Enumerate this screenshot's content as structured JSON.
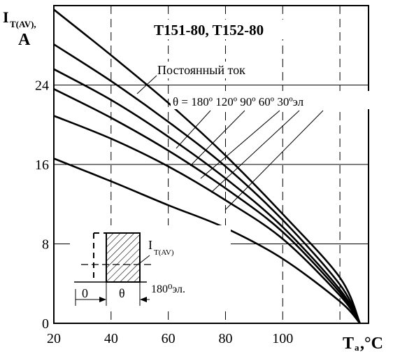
{
  "chart_data": {
    "type": "line",
    "title": "T151-80, T152-80",
    "ylabel": {
      "main": "I",
      "sub": "T(AV),",
      "unit": "A"
    },
    "xlabel": {
      "main": "T",
      "sub": "a",
      "unit": ",°C"
    },
    "xlim": [
      20,
      130
    ],
    "ylim": [
      0,
      32
    ],
    "x_ticks": [
      20,
      40,
      60,
      80,
      100
    ],
    "y_ticks": [
      0,
      8,
      16,
      24
    ],
    "x_tick_labels": [
      "20",
      "40",
      "60",
      "80",
      "100"
    ],
    "y_tick_labels": [
      "0",
      "8",
      "16",
      "24"
    ],
    "grid": true,
    "series": [
      {
        "name": "Постоянный ток",
        "x": [
          20,
          40,
          60,
          80,
          100,
          120,
          127
        ],
        "y": [
          31.6,
          27.0,
          22.2,
          16.9,
          11.0,
          4.6,
          0
        ]
      },
      {
        "x": [
          20,
          40,
          60,
          80,
          100,
          120,
          127
        ],
        "y": [
          28.1,
          24.4,
          20.3,
          15.8,
          10.4,
          3.9,
          0
        ]
      },
      {
        "x": [
          20,
          40,
          60,
          80,
          100,
          120,
          127
        ],
        "y": [
          25.6,
          22.5,
          18.8,
          14.6,
          9.7,
          3.4,
          0
        ]
      },
      {
        "x": [
          20,
          40,
          60,
          80,
          100,
          120,
          127
        ],
        "y": [
          23.6,
          20.7,
          17.4,
          13.6,
          9.2,
          3.1,
          0
        ]
      },
      {
        "x": [
          20,
          40,
          60,
          80,
          100,
          120,
          127
        ],
        "y": [
          20.9,
          18.6,
          15.8,
          12.4,
          8.5,
          2.8,
          0
        ]
      },
      {
        "x": [
          20,
          40,
          60,
          80,
          100,
          120,
          127
        ],
        "y": [
          16.6,
          14.3,
          11.9,
          9.6,
          6.5,
          2.2,
          0
        ]
      }
    ],
    "annotations": {
      "dc_label": "Постоянный ток",
      "theta_label": "θ = 180º 120º 90º 60º 30ºэл"
    },
    "inset": {
      "label_main": "I",
      "label_sub": "T(AV)",
      "zero": "0",
      "theta": "θ",
      "period": "180⁰эл."
    }
  }
}
